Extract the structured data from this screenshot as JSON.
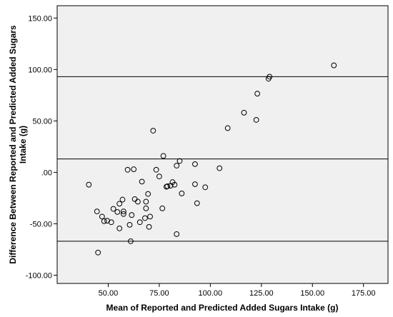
{
  "chart_data": {
    "type": "scatter",
    "xlabel": "Mean of Reported and Predicted Added Sugars Intake (g)",
    "ylabel_lines": [
      "Difference Between Reported and Predicted Added Sugars",
      "Intake (g)"
    ],
    "xlim": [
      25,
      187
    ],
    "ylim": [
      -108,
      162
    ],
    "x_ticks": [
      50,
      75,
      100,
      125,
      150,
      175
    ],
    "x_tick_labels": [
      "50.00",
      "75.00",
      "100.00",
      "125.00",
      "150.00",
      "175.00"
    ],
    "y_ticks": [
      -100,
      -50,
      0,
      50,
      100,
      150
    ],
    "y_tick_labels": [
      "-100.00",
      "-50.00",
      ".00",
      "50.00",
      "100.00",
      "150.00"
    ],
    "reference_lines": [
      93,
      13,
      -67
    ],
    "marker_color": "#000000",
    "plot_background": "#f0f0f0",
    "points": [
      {
        "x": 40.5,
        "y": -12.0
      },
      {
        "x": 44.5,
        "y": -38.0
      },
      {
        "x": 45.0,
        "y": -78.0
      },
      {
        "x": 47.0,
        "y": -43.0
      },
      {
        "x": 48.0,
        "y": -47.5
      },
      {
        "x": 49.5,
        "y": -47.0
      },
      {
        "x": 51.5,
        "y": -48.5
      },
      {
        "x": 52.5,
        "y": -35.5
      },
      {
        "x": 54.5,
        "y": -38.5
      },
      {
        "x": 55.5,
        "y": -30.5
      },
      {
        "x": 55.5,
        "y": -54.5
      },
      {
        "x": 57.0,
        "y": -26.5
      },
      {
        "x": 57.5,
        "y": -38.0
      },
      {
        "x": 57.5,
        "y": -40.5
      },
      {
        "x": 59.5,
        "y": 2.5
      },
      {
        "x": 60.5,
        "y": -51.0
      },
      {
        "x": 61.0,
        "y": -67.0
      },
      {
        "x": 61.5,
        "y": -41.5
      },
      {
        "x": 62.5,
        "y": 3.0
      },
      {
        "x": 63.0,
        "y": -26.0
      },
      {
        "x": 64.5,
        "y": -28.5
      },
      {
        "x": 65.5,
        "y": -48.5
      },
      {
        "x": 66.5,
        "y": -9.0
      },
      {
        "x": 68.0,
        "y": -44.5
      },
      {
        "x": 68.5,
        "y": -28.5
      },
      {
        "x": 68.5,
        "y": -35.0
      },
      {
        "x": 69.5,
        "y": -21.0
      },
      {
        "x": 70.0,
        "y": -53.0
      },
      {
        "x": 70.5,
        "y": -43.0
      },
      {
        "x": 72.0,
        "y": 40.5
      },
      {
        "x": 73.5,
        "y": 2.5
      },
      {
        "x": 75.0,
        "y": -4.0
      },
      {
        "x": 76.5,
        "y": -35.0
      },
      {
        "x": 77.0,
        "y": 16.0
      },
      {
        "x": 78.5,
        "y": -14.0
      },
      {
        "x": 79.0,
        "y": -13.5
      },
      {
        "x": 80.5,
        "y": -13.0
      },
      {
        "x": 81.5,
        "y": -9.5
      },
      {
        "x": 82.5,
        "y": -12.0
      },
      {
        "x": 83.5,
        "y": 6.5
      },
      {
        "x": 83.5,
        "y": -60.0
      },
      {
        "x": 85.0,
        "y": 11.0
      },
      {
        "x": 86.0,
        "y": -20.5
      },
      {
        "x": 92.5,
        "y": 8.0
      },
      {
        "x": 92.5,
        "y": -11.5
      },
      {
        "x": 93.5,
        "y": -30.0
      },
      {
        "x": 97.5,
        "y": -14.5
      },
      {
        "x": 104.5,
        "y": 4.0
      },
      {
        "x": 108.5,
        "y": 43.0
      },
      {
        "x": 116.5,
        "y": 58.0
      },
      {
        "x": 122.5,
        "y": 51.0
      },
      {
        "x": 123.0,
        "y": 76.5
      },
      {
        "x": 128.5,
        "y": 91.0
      },
      {
        "x": 129.0,
        "y": 93.0
      },
      {
        "x": 160.5,
        "y": 104.0
      }
    ]
  }
}
